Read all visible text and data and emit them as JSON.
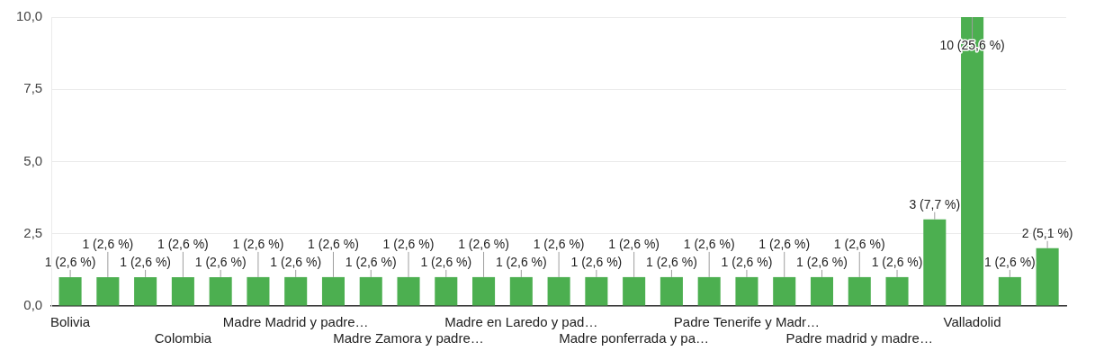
{
  "chart_data": {
    "type": "bar",
    "categories": [
      "Bolivia",
      null,
      null,
      "Colombia",
      null,
      null,
      "Madre Madrid y padre…",
      null,
      null,
      "Madre Zamora y padre…",
      null,
      null,
      "Madre en Laredo y pad…",
      null,
      null,
      "Madre ponferrada y pa…",
      null,
      null,
      "Padre Tenerife y Madr…",
      null,
      null,
      "Padre madrid y madre…",
      null,
      null,
      "Valladolid",
      null,
      null
    ],
    "values": [
      1,
      1,
      1,
      1,
      1,
      1,
      1,
      1,
      1,
      1,
      1,
      1,
      1,
      1,
      1,
      1,
      1,
      1,
      1,
      1,
      1,
      1,
      1,
      3,
      10,
      1,
      2
    ],
    "value_labels": [
      "1 (2,6 %)",
      "1 (2,6 %)",
      "1 (2,6 %)",
      "1 (2,6 %)",
      "1 (2,6 %)",
      "1 (2,6 %)",
      "1 (2,6 %)",
      "1 (2,6 %)",
      "1 (2,6 %)",
      "1 (2,6 %)",
      "1 (2,6 %)",
      "1 (2,6 %)",
      "1 (2,6 %)",
      "1 (2,6 %)",
      "1 (2,6 %)",
      "1 (2,6 %)",
      "1 (2,6 %)",
      "1 (2,6 %)",
      "1 (2,6 %)",
      "1 (2,6 %)",
      "1 (2,6 %)",
      "1 (2,6 %)",
      "1 (2,6 %)",
      "3 (7,7 %)",
      "10 (25,6 %)",
      "1 (2,6 %)",
      "2 (5,1 %)"
    ],
    "color": "#4caf50",
    "ylim": [
      0,
      10
    ],
    "yticks": [
      {
        "value": 0,
        "label": "0,0"
      },
      {
        "value": 2.5,
        "label": "2,5"
      },
      {
        "value": 5,
        "label": "5,0"
      },
      {
        "value": 7.5,
        "label": "7,5"
      },
      {
        "value": 10,
        "label": "10,0"
      }
    ],
    "grid": "y"
  }
}
